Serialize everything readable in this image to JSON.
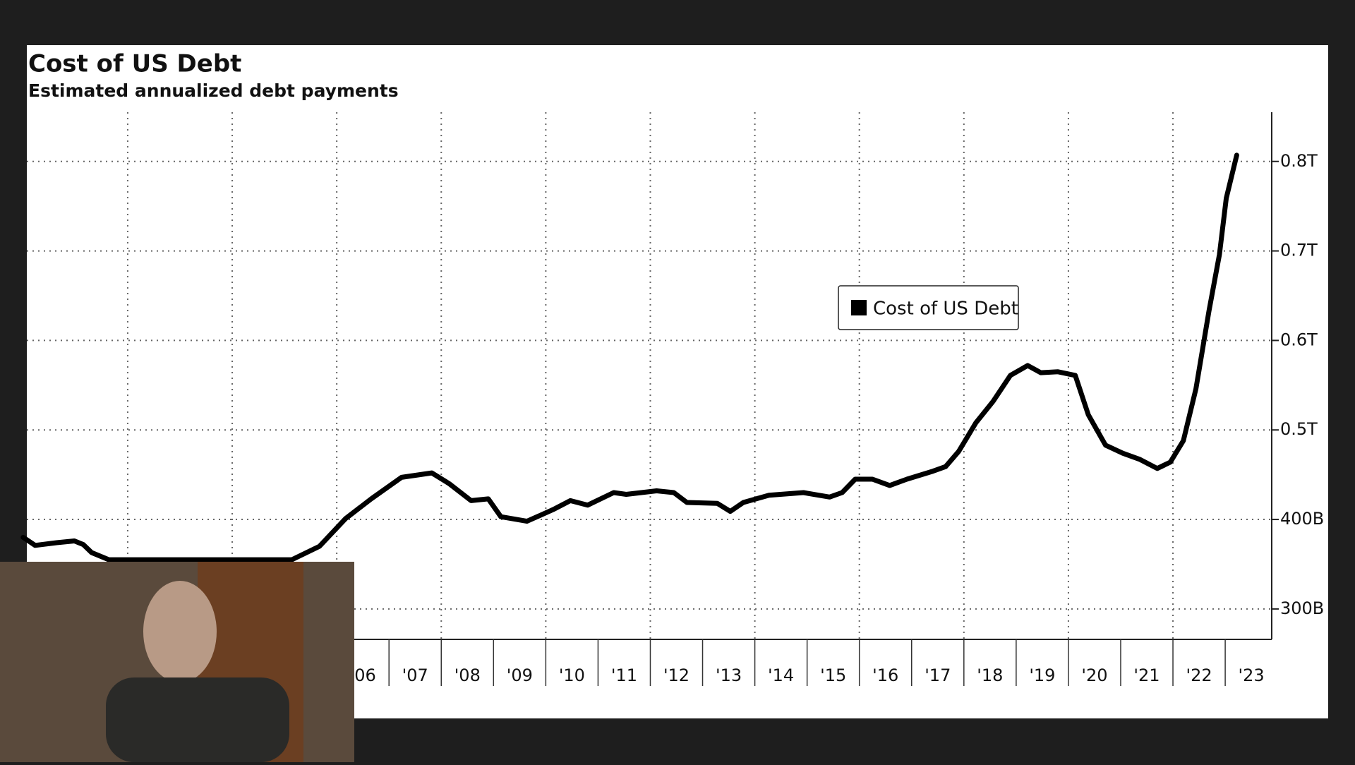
{
  "chart_data": {
    "type": "line",
    "title": "Cost of US Debt",
    "subtitle": "Estimated annualized debt payments",
    "x": [
      2000.0,
      2000.23,
      2000.64,
      2000.98,
      2001.15,
      2001.31,
      2001.64,
      2005.14,
      2005.67,
      2006.17,
      2006.66,
      2007.24,
      2007.82,
      2008.15,
      2008.57,
      2008.9,
      2009.14,
      2009.64,
      2010.14,
      2010.47,
      2010.8,
      2011.3,
      2011.54,
      2012.12,
      2012.45,
      2012.7,
      2013.28,
      2013.53,
      2013.78,
      2014.27,
      2014.93,
      2015.43,
      2015.67,
      2015.92,
      2016.25,
      2016.58,
      2016.91,
      2017.41,
      2017.65,
      2017.9,
      2018.23,
      2018.56,
      2018.89,
      2019.22,
      2019.47,
      2019.8,
      2020.13,
      2020.38,
      2020.71,
      2021.04,
      2021.37,
      2021.7,
      2021.95,
      2022.2,
      2022.44,
      2022.69,
      2022.89,
      2023.02,
      2023.22
    ],
    "series": [
      {
        "name": "Cost of US Debt",
        "color": "#000000",
        "values": [
          380,
          371,
          374,
          376,
          372,
          363,
          355,
          355,
          370,
          401,
          423,
          447,
          452,
          440,
          421,
          423,
          403,
          398,
          411,
          421,
          416,
          430,
          428,
          432,
          430,
          419,
          418,
          409,
          419,
          427,
          430,
          425,
          430,
          445,
          445,
          438,
          445,
          454,
          459,
          476,
          508,
          532,
          561,
          572,
          564,
          565,
          561,
          517,
          483,
          474,
          467,
          457,
          464,
          488,
          546,
          633,
          696,
          759,
          807
        ]
      }
    ],
    "xlim": [
      2000.07,
      2023.89
    ],
    "xticks": [
      {
        "value": 2006.5,
        "label": "'06"
      },
      {
        "value": 2007.5,
        "label": "'07"
      },
      {
        "value": 2008.5,
        "label": "'08"
      },
      {
        "value": 2009.5,
        "label": "'09"
      },
      {
        "value": 2010.5,
        "label": "'10"
      },
      {
        "value": 2011.5,
        "label": "'11"
      },
      {
        "value": 2012.5,
        "label": "'12"
      },
      {
        "value": 2013.5,
        "label": "'13"
      },
      {
        "value": 2014.5,
        "label": "'14"
      },
      {
        "value": 2015.5,
        "label": "'15"
      },
      {
        "value": 2016.5,
        "label": "'16"
      },
      {
        "value": 2017.5,
        "label": "'17"
      },
      {
        "value": 2018.5,
        "label": "'18"
      },
      {
        "value": 2019.5,
        "label": "'19"
      },
      {
        "value": 2020.5,
        "label": "'20"
      },
      {
        "value": 2021.5,
        "label": "'21"
      },
      {
        "value": 2022.5,
        "label": "'22"
      },
      {
        "value": 2023.5,
        "label": "'23"
      }
    ],
    "xgrid": [
      2002,
      2004,
      2006,
      2008,
      2010,
      2012,
      2014,
      2016,
      2018,
      2020,
      2022
    ],
    "ylim": [
      266,
      855
    ],
    "yticks": [
      {
        "value": 300,
        "label": "300B"
      },
      {
        "value": 400,
        "label": "400B"
      },
      {
        "value": 500,
        "label": "0.5T"
      },
      {
        "value": 600,
        "label": "0.6T"
      },
      {
        "value": 700,
        "label": "0.7T"
      },
      {
        "value": 800,
        "label": "0.8T"
      }
    ],
    "grid": true,
    "legend": "upper right"
  }
}
